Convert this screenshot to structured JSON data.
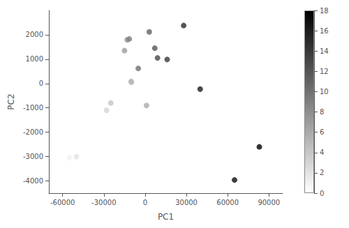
{
  "chart_data": {
    "type": "scatter",
    "xlabel": "PC1",
    "ylabel": "PC2",
    "x": [
      -55000,
      -50000,
      -28000,
      -25000,
      -10000,
      -10200,
      1000,
      -15000,
      -13000,
      -11500,
      -5000,
      3000,
      7000,
      9000,
      16000,
      28000,
      40000,
      65000,
      83000
    ],
    "values": [
      -3050,
      -3000,
      -1100,
      -800,
      50,
      90,
      -900,
      1350,
      1800,
      1830,
      620,
      2120,
      1450,
      1050,
      990,
      2380,
      -230,
      -3960,
      -2600
    ],
    "color_values": [
      1,
      2,
      3,
      4,
      5,
      5,
      6,
      7,
      8,
      9,
      10,
      11,
      12,
      13,
      14,
      15,
      16,
      17,
      18
    ],
    "colorbar": {
      "range": [
        0,
        18
      ],
      "ticks": [
        0,
        2,
        4,
        6,
        8,
        10,
        12,
        14,
        16,
        18
      ],
      "colors": [
        "#ffffff",
        "#000000"
      ]
    },
    "xlim": [
      -70000,
      100000
    ],
    "ylim": [
      -4500,
      3000
    ],
    "xticks": [
      -60000,
      -30000,
      0,
      30000,
      60000,
      90000
    ],
    "yticks": [
      -4000,
      -3000,
      -2000,
      -1000,
      0,
      1000,
      2000
    ],
    "grid": false
  }
}
